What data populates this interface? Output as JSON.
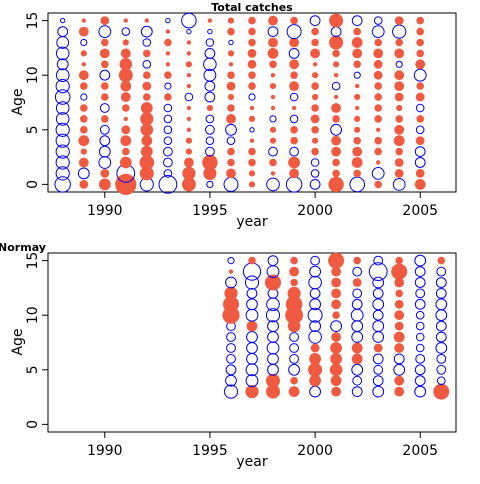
{
  "colors": {
    "positive": "#F05A40",
    "negative": "#0000EE",
    "axis": "#000000"
  },
  "chart_data": [
    {
      "type": "scatter",
      "subtype": "bubble",
      "title": "Total catches",
      "xlabel": "year",
      "ylabel": "Age",
      "xlim": [
        1987.3,
        2006.7
      ],
      "ylim": [
        -0.7,
        15.7
      ],
      "xticks": [
        1990,
        1995,
        2000,
        2005
      ],
      "yticks": [
        0,
        5,
        10,
        15
      ],
      "ages": [
        0,
        1,
        2,
        3,
        4,
        5,
        6,
        7,
        8,
        9,
        10,
        11,
        12,
        13,
        14,
        15
      ],
      "years": [
        1988,
        1989,
        1990,
        1991,
        1992,
        1993,
        1994,
        1995,
        1996,
        1997,
        1998,
        1999,
        2000,
        2001,
        2002,
        2003,
        2004,
        2005
      ],
      "residuals": [
        [
          -1.2,
          -0.9,
          -0.9,
          -0.9,
          -0.9,
          -0.9,
          -0.8,
          -0.8,
          -1.1,
          -0.9,
          -0.8,
          -0.6,
          -0.8,
          -0.7,
          -0.5,
          -0.1
        ],
        [
          0.4,
          -0.6,
          0.5,
          0.2,
          0.6,
          0.3,
          0.3,
          0.3,
          -0.2,
          0.3,
          0.5,
          0.1,
          0.2,
          -0.2,
          0.5,
          0.1
        ],
        [
          0.7,
          0.4,
          -0.7,
          -0.6,
          -0.5,
          -0.4,
          0.3,
          -0.4,
          0.3,
          0.3,
          -0.5,
          0.3,
          0.5,
          0.3,
          -0.7,
          0.4
        ],
        [
          2.3,
          -1.6,
          0.7,
          0.3,
          0.6,
          0.4,
          0.1,
          0.3,
          0.5,
          0.6,
          1.0,
          0.8,
          0.5,
          0.2,
          -0.3,
          0.1
        ],
        [
          -0.9,
          1.0,
          1.1,
          0.7,
          0.6,
          0.8,
          0.9,
          0.7,
          0.3,
          0.4,
          0.3,
          -0.3,
          0.3,
          -0.3,
          -0.6,
          0.1
        ],
        [
          -1.6,
          -0.3,
          -0.4,
          -0.4,
          -0.3,
          -0.3,
          -0.3,
          -0.3,
          0.3,
          -0.2,
          0.3,
          0.1,
          0.1,
          0.3,
          0.1,
          -0.1
        ],
        [
          1.0,
          0.9,
          0.5,
          0.2,
          0.2,
          0.1,
          0.1,
          0.1,
          -0.3,
          0.1,
          0.1,
          0.2,
          0.1,
          0.1,
          -0.1,
          -1.1
        ],
        [
          -0.2,
          0.9,
          1.2,
          -0.4,
          -0.3,
          -0.4,
          -0.3,
          0.2,
          -0.5,
          -0.5,
          -0.7,
          -0.8,
          -0.5,
          -0.3,
          -0.1,
          0.1
        ],
        [
          -1.0,
          0.5,
          0.3,
          0.3,
          -0.3,
          -0.6,
          0.5,
          0.3,
          0.2,
          0.4,
          0.3,
          0.1,
          0.2,
          -0.1,
          0.3,
          0.2
        ],
        [
          0.2,
          0.2,
          0.3,
          0.3,
          0.1,
          -0.1,
          0.2,
          0.1,
          -0.2,
          0.3,
          0.3,
          0.4,
          0.4,
          0.3,
          0.3,
          0.3
        ],
        [
          -0.8,
          0.1,
          0.3,
          -0.4,
          0.2,
          0.2,
          -0.2,
          0.1,
          0.1,
          0.2,
          0.1,
          0.3,
          0.6,
          0.5,
          -0.5,
          0.5
        ],
        [
          -1.2,
          0.5,
          0.7,
          -0.4,
          0.3,
          0.3,
          -0.3,
          0.1,
          -0.3,
          0.5,
          0.3,
          0.5,
          -0.5,
          0.5,
          -1.0,
          0.3
        ],
        [
          -0.5,
          -0.3,
          -0.3,
          0.3,
          0.2,
          0.3,
          0.4,
          0.3,
          0.2,
          0.3,
          0.2,
          0.1,
          0.5,
          0.3,
          0.3,
          -0.5
        ],
        [
          1.2,
          0.3,
          0.3,
          0.5,
          0.5,
          -0.6,
          0.3,
          0.5,
          0.1,
          -0.3,
          0.1,
          0.2,
          0.3,
          1.0,
          -0.5,
          1.0
        ],
        [
          -1.1,
          0.3,
          0.6,
          0.5,
          0.3,
          0.2,
          0.2,
          0.1,
          0.2,
          0.1,
          -0.2,
          0.3,
          0.5,
          0.6,
          0.3,
          -0.5
        ],
        [
          0.3,
          -0.7,
          0.1,
          0.3,
          0.3,
          0.1,
          0.3,
          0.3,
          0.3,
          0.3,
          0.4,
          0.4,
          0.5,
          0.3,
          -0.7,
          -0.3
        ],
        [
          -0.7,
          0.4,
          0.4,
          0.3,
          0.6,
          0.5,
          0.3,
          0.2,
          0.4,
          0.5,
          0.5,
          -0.2,
          0.5,
          0.3,
          -0.9,
          0.4
        ],
        [
          0.6,
          0.4,
          -0.5,
          -0.5,
          0.4,
          -0.3,
          0.3,
          -0.3,
          0.4,
          0.3,
          -0.7,
          0.5,
          0.3,
          0.3,
          0.3,
          0.3
        ]
      ]
    },
    {
      "type": "scatter",
      "subtype": "bubble",
      "title": "Normay",
      "xlabel": "year",
      "ylabel": "Age",
      "xlim": [
        1987.3,
        2006.7
      ],
      "ylim": [
        -0.7,
        15.7
      ],
      "xticks": [
        1990,
        1995,
        2000,
        2005
      ],
      "yticks": [
        0,
        5,
        10,
        15
      ],
      "ages": [
        3,
        4,
        5,
        6,
        7,
        8,
        9,
        10,
        11,
        12,
        13,
        14,
        15
      ],
      "years": [
        1996,
        1997,
        1998,
        1999,
        2000,
        2001,
        2002,
        2003,
        2004,
        2005,
        2006
      ],
      "residuals": [
        [
          -0.9,
          -0.6,
          -0.5,
          -0.4,
          -0.4,
          -0.4,
          -0.4,
          1.5,
          1.3,
          0.9,
          -0.6,
          0.1,
          -0.2
        ],
        [
          0.9,
          -0.7,
          -0.7,
          -0.6,
          -0.6,
          -0.6,
          0.6,
          -0.7,
          -0.6,
          -0.5,
          -0.9,
          -1.5,
          0.3
        ],
        [
          1.0,
          1.0,
          -0.6,
          -0.6,
          -0.7,
          -0.6,
          -0.6,
          -0.9,
          -0.8,
          -0.5,
          1.3,
          -0.7,
          -0.5
        ],
        [
          0.6,
          0.3,
          -0.6,
          -0.4,
          -0.4,
          -0.4,
          0.8,
          1.6,
          1.4,
          0.9,
          0.3,
          0.5,
          0.3
        ],
        [
          -0.6,
          0.7,
          1.0,
          0.7,
          0.4,
          -0.8,
          -0.6,
          -1.0,
          -0.6,
          -0.5,
          -0.8,
          -0.6,
          -0.4
        ],
        [
          0.5,
          0.6,
          0.8,
          0.7,
          0.7,
          0.5,
          -0.6,
          0.3,
          0.5,
          0.5,
          0.5,
          0.5,
          1.3
        ],
        [
          -0.5,
          -0.4,
          -0.6,
          0.6,
          0.6,
          -0.6,
          -0.6,
          -0.7,
          -0.5,
          -0.4,
          0.4,
          -0.4,
          0.3
        ],
        [
          -0.6,
          -0.5,
          -0.4,
          -0.5,
          0.4,
          -0.6,
          -0.6,
          -0.5,
          -0.6,
          -0.5,
          -0.6,
          -1.6,
          -0.4
        ],
        [
          0.5,
          0.5,
          -0.6,
          -0.5,
          0.5,
          0.6,
          0.4,
          0.5,
          0.4,
          0.3,
          0.5,
          1.3,
          0.3
        ],
        [
          -0.6,
          -0.5,
          -0.5,
          -0.4,
          -0.3,
          -0.3,
          -0.3,
          -0.3,
          -0.5,
          -0.4,
          -0.5,
          -0.5,
          -0.6
        ],
        [
          1.3,
          -0.3,
          -0.4,
          -0.4,
          -0.6,
          -0.5,
          -0.5,
          -0.6,
          -0.6,
          -0.5,
          -0.5,
          -0.4,
          0.3
        ]
      ]
    }
  ]
}
